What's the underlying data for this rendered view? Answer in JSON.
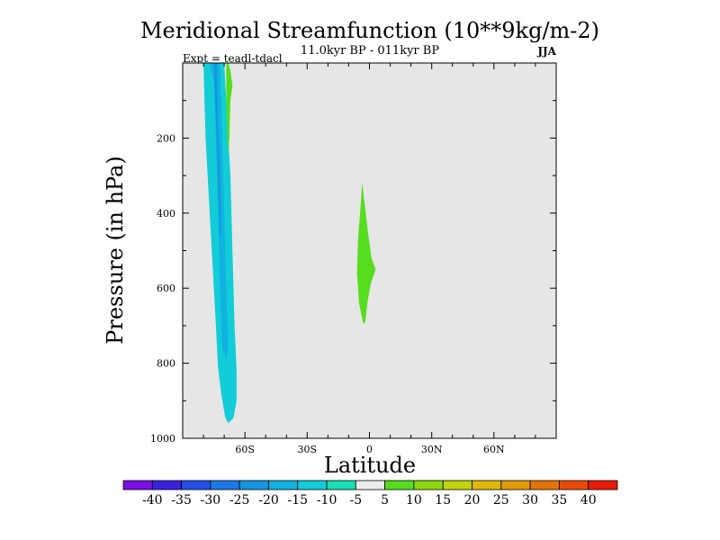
{
  "chart_data": {
    "type": "heatmap",
    "title": "Meridional Streamfunction (10**9kg/m-2)",
    "subtitle": "11.0kyr BP - 011kyr BP",
    "left_label": "Expt = teadl-tdacl",
    "right_label": "JJA",
    "xlabel": "Latitude",
    "ylabel": "Pressure (in hPa)",
    "xlim": [
      -90,
      90
    ],
    "ylim": [
      1000,
      0
    ],
    "x_ticks": [
      {
        "value": -60,
        "label": "60S"
      },
      {
        "value": -30,
        "label": "30S"
      },
      {
        "value": 0,
        "label": "0"
      },
      {
        "value": 30,
        "label": "30N"
      },
      {
        "value": 60,
        "label": "60N"
      }
    ],
    "y_ticks": [
      {
        "value": 200,
        "label": "200"
      },
      {
        "value": 400,
        "label": "400"
      },
      {
        "value": 600,
        "label": "600"
      },
      {
        "value": 800,
        "label": "800"
      },
      {
        "value": 1000,
        "label": "1000"
      }
    ],
    "background_color": "#e6e6e6",
    "colorbar": {
      "levels": [
        -40,
        -35,
        -30,
        -25,
        -20,
        -15,
        -10,
        -5,
        5,
        10,
        15,
        20,
        25,
        30,
        35,
        40
      ],
      "labels": [
        "-40",
        "-35",
        "-30",
        "-25",
        "-20",
        "-15",
        "-10",
        "-5",
        "5",
        "10",
        "15",
        "20",
        "25",
        "30",
        "35",
        "40"
      ],
      "colors": [
        "#7a0fe6",
        "#3a22e0",
        "#2250e6",
        "#1b78e8",
        "#1497e0",
        "#10b2e0",
        "#12cdd8",
        "#18dfb4",
        "#ececec",
        "#55dd1e",
        "#8ed80e",
        "#c2d40c",
        "#e0b80a",
        "#e39a08",
        "#e57308",
        "#e84a06",
        "#e81c06"
      ]
    },
    "regions": [
      {
        "name": "southern-cell-outer",
        "bin": "-10 to -5",
        "color": "#12cdd8",
        "polygon": [
          [
            -80,
            0
          ],
          [
            -70,
            0
          ],
          [
            -69,
            100
          ],
          [
            -67,
            300
          ],
          [
            -66,
            500
          ],
          [
            -65,
            700
          ],
          [
            -64,
            820
          ],
          [
            -64,
            900
          ],
          [
            -65.5,
            945
          ],
          [
            -68,
            960
          ],
          [
            -69.5,
            945
          ],
          [
            -71.5,
            880
          ],
          [
            -73,
            810
          ],
          [
            -74,
            700
          ],
          [
            -75,
            600
          ],
          [
            -76,
            500
          ],
          [
            -77,
            400
          ],
          [
            -78,
            300
          ],
          [
            -79,
            200
          ],
          [
            -79.5,
            100
          ]
        ]
      },
      {
        "name": "southern-cell-mid",
        "bin": "-15 to -10",
        "color": "#10b2e0",
        "polygon": [
          [
            -77,
            0
          ],
          [
            -72,
            0
          ],
          [
            -71,
            200
          ],
          [
            -70,
            400
          ],
          [
            -69,
            600
          ],
          [
            -68,
            760
          ],
          [
            -69,
            790
          ],
          [
            -71,
            760
          ],
          [
            -72,
            600
          ],
          [
            -73,
            400
          ],
          [
            -74,
            200
          ],
          [
            -75,
            50
          ]
        ]
      },
      {
        "name": "southern-cell-inner",
        "bin": "-20 to -15",
        "color": "#1497e0",
        "polygon": [
          [
            -75,
            0
          ],
          [
            -73.5,
            0
          ],
          [
            -73,
            150
          ],
          [
            -72,
            300
          ],
          [
            -71.5,
            450
          ],
          [
            -72.2,
            460
          ],
          [
            -73,
            300
          ],
          [
            -74,
            150
          ]
        ]
      },
      {
        "name": "southern-secondary",
        "bin": "5 to 10",
        "color": "#55dd1e",
        "polygon": [
          [
            -68,
            0
          ],
          [
            -67,
            20
          ],
          [
            -66,
            60
          ],
          [
            -67,
            100
          ],
          [
            -67.5,
            200
          ],
          [
            -68,
            240
          ],
          [
            -68.5,
            200
          ],
          [
            -69,
            100
          ],
          [
            -69,
            0
          ]
        ]
      },
      {
        "name": "tropical-cell",
        "bin": "5 to 10",
        "color": "#55dd1e",
        "polygon": [
          [
            -3.5,
            320
          ],
          [
            -2,
            390
          ],
          [
            -0.5,
            460
          ],
          [
            1,
            520
          ],
          [
            3,
            550
          ],
          [
            0.5,
            590
          ],
          [
            -1,
            640
          ],
          [
            -2,
            690
          ],
          [
            -3,
            695
          ],
          [
            -5,
            640
          ],
          [
            -6,
            560
          ],
          [
            -5.5,
            470
          ],
          [
            -4.5,
            400
          ]
        ]
      }
    ]
  }
}
